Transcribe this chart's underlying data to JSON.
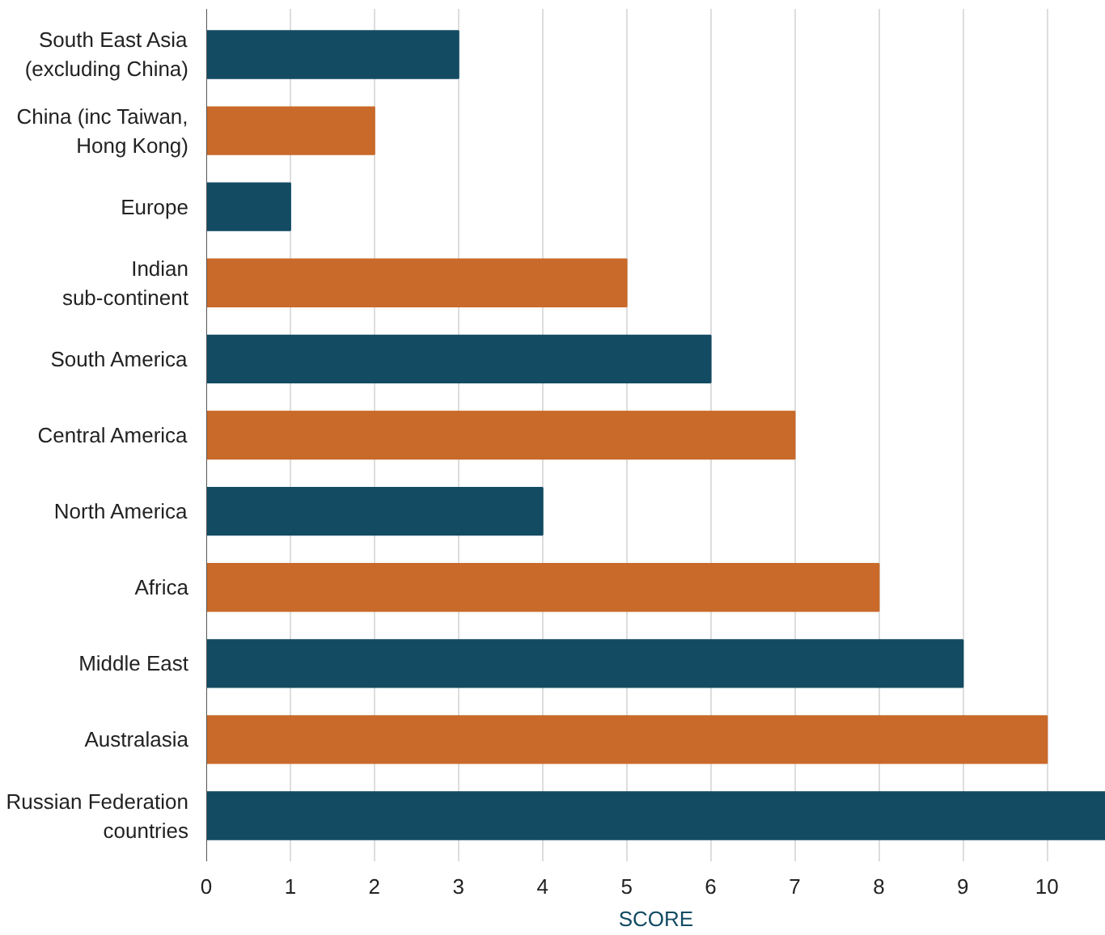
{
  "chart_data": {
    "type": "bar",
    "orientation": "horizontal",
    "xlabel": "SCORE",
    "categories": [
      "South East Asia\n(excluding China)",
      "China (inc Taiwan,\nHong Kong)",
      "Europe",
      "Indian\nsub-continent",
      "South America",
      "Central America",
      "North America",
      "Africa",
      "Middle East",
      "Australasia",
      "Russian Federation\ncountries"
    ],
    "values": [
      3,
      2,
      1,
      5,
      6,
      7,
      4,
      8,
      9,
      10,
      10.7
    ],
    "colors": [
      "#134b63",
      "#c96a2a",
      "#134b63",
      "#c96a2a",
      "#134b63",
      "#c96a2a",
      "#134b63",
      "#c96a2a",
      "#134b63",
      "#c96a2a",
      "#134b63"
    ],
    "xlim": [
      0,
      10.7
    ],
    "xticks": [
      0,
      1,
      2,
      3,
      4,
      5,
      6,
      7,
      8,
      9,
      10
    ],
    "grid": "x"
  }
}
